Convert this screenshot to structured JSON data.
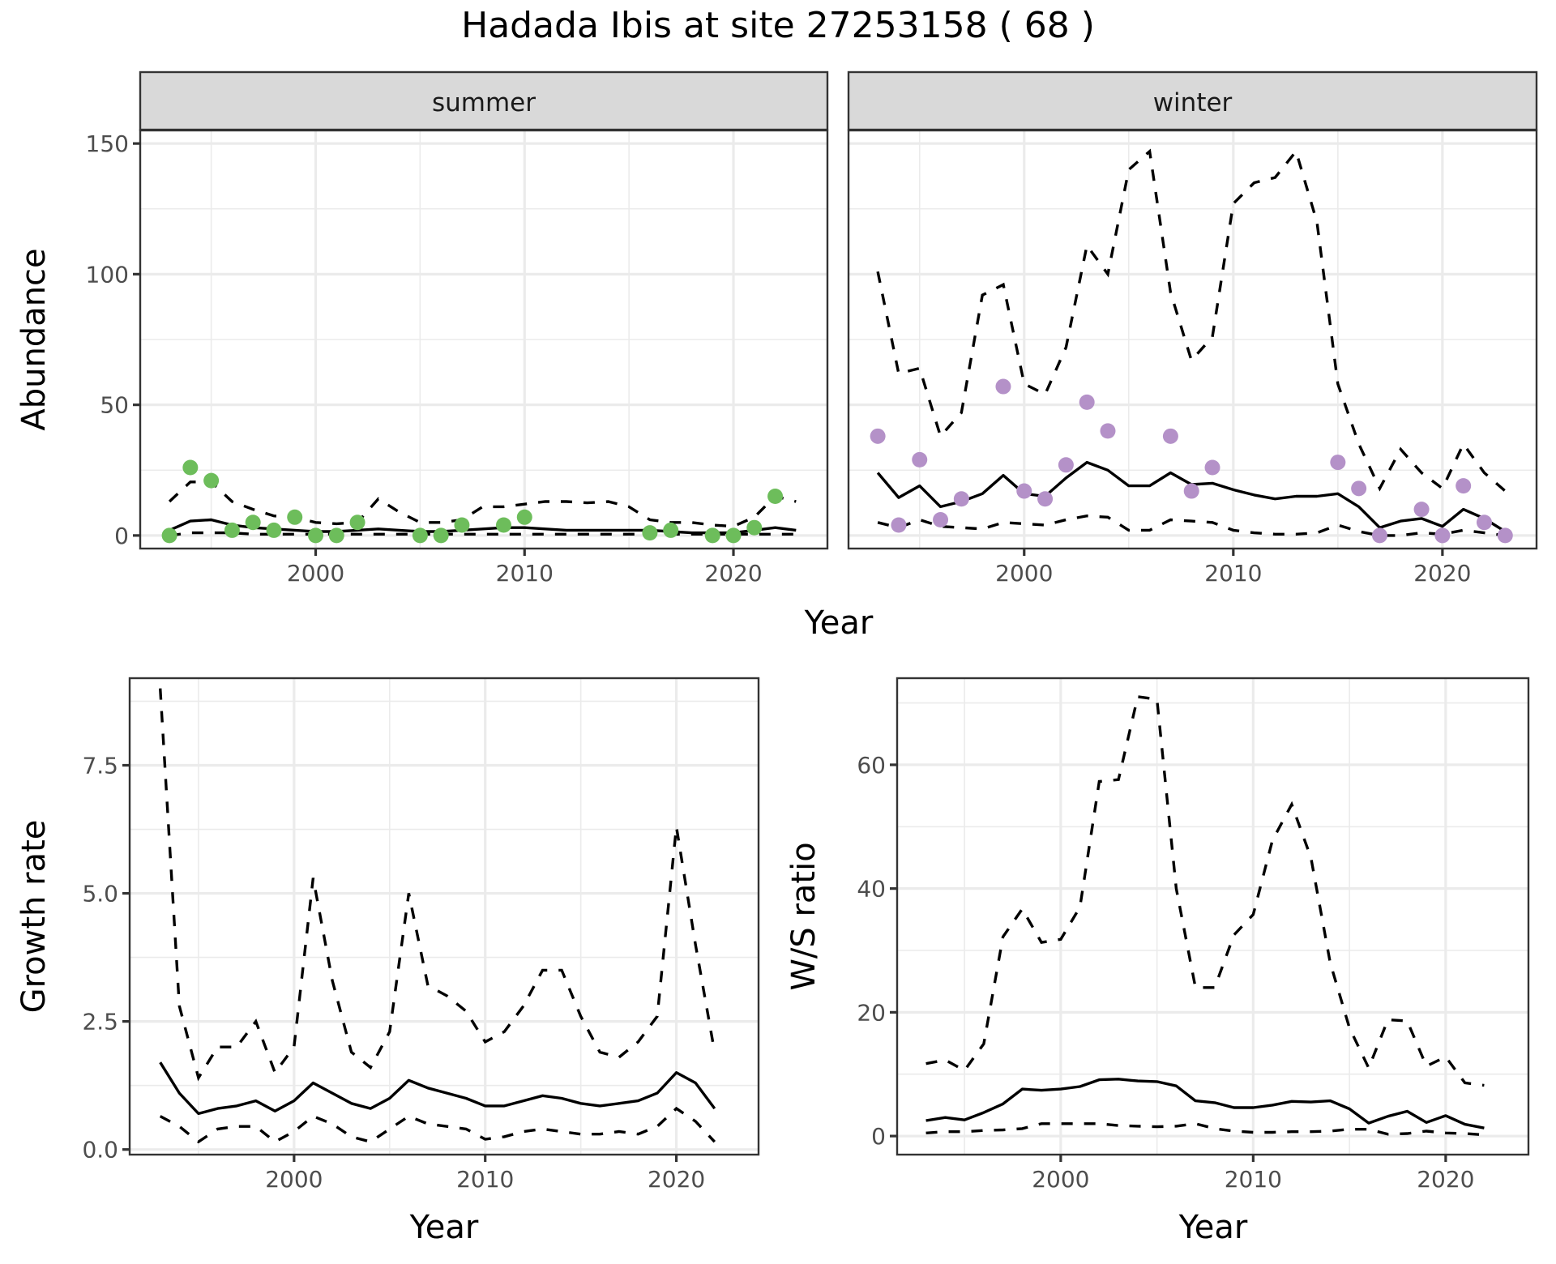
{
  "title": "Hadada Ibis at site 27253158 ( 68 )",
  "colors": {
    "summer_points": "#6dbd5b",
    "winter_points": "#b491c8",
    "strip_fill": "#d9d9d9",
    "line": "#000000"
  },
  "chart_data": [
    {
      "id": "abundance",
      "type": "line",
      "facets": [
        "summer",
        "winter"
      ],
      "ylabel": "Abundance",
      "xlabel": "Year",
      "ylim": [
        -5,
        155
      ],
      "yticks": [
        0,
        50,
        100,
        150
      ],
      "yticklabels": [
        "0",
        "50",
        "100",
        "150"
      ],
      "xlim": [
        1991.6,
        2024.5
      ],
      "xticks": [
        2000,
        2010,
        2020
      ],
      "xticklabels": [
        "2000",
        "2010",
        "2020"
      ],
      "grid": true,
      "panels": {
        "summer": {
          "x": [
            1993,
            1994,
            1995,
            1996,
            1997,
            1998,
            1999,
            2000,
            2001,
            2002,
            2003,
            2004,
            2005,
            2006,
            2007,
            2008,
            2009,
            2010,
            2011,
            2012,
            2013,
            2014,
            2015,
            2016,
            2017,
            2018,
            2019,
            2020,
            2021,
            2022,
            2023
          ],
          "mean": [
            2,
            5.5,
            6,
            4,
            3,
            2.5,
            2,
            1.5,
            1.5,
            2,
            2.5,
            2,
            1.5,
            1.5,
            2,
            2.5,
            3,
            3,
            2.5,
            2,
            2,
            2,
            2,
            2,
            1.5,
            1,
            1,
            1,
            2,
            3,
            2
          ],
          "upper": [
            13,
            20.5,
            20.5,
            13,
            10,
            7.5,
            7,
            5,
            4.5,
            5,
            14,
            9,
            5,
            5,
            6,
            11,
            11,
            12,
            13,
            13,
            12.5,
            13,
            11,
            6,
            5,
            5,
            4,
            3.5,
            7,
            15,
            13
          ],
          "lower": [
            0,
            1,
            1,
            1,
            0.5,
            0.5,
            0.5,
            0.5,
            0.5,
            0.5,
            0.5,
            0.5,
            0.5,
            0.5,
            0.5,
            0.5,
            0.5,
            0.5,
            0.5,
            0.5,
            0.5,
            0.5,
            0.5,
            0.5,
            0.5,
            0.5,
            0.5,
            0.5,
            0.5,
            0.5,
            0.5
          ],
          "observed": {
            "x": [
              1993,
              1994,
              1995,
              1996,
              1997,
              1998,
              1999,
              2000,
              2001,
              2002,
              2005,
              2006,
              2007,
              2009,
              2010,
              2016,
              2017,
              2019,
              2020,
              2021,
              2022
            ],
            "y": [
              0,
              26,
              21,
              2,
              5,
              2,
              7,
              0,
              0,
              5,
              0,
              0,
              4,
              4,
              7,
              1,
              2,
              0,
              0,
              3,
              15
            ]
          }
        },
        "winter": {
          "x": [
            1993,
            1994,
            1995,
            1996,
            1997,
            1998,
            1999,
            2000,
            2001,
            2002,
            2003,
            2004,
            2005,
            2006,
            2007,
            2008,
            2009,
            2010,
            2011,
            2012,
            2013,
            2014,
            2015,
            2016,
            2017,
            2018,
            2019,
            2020,
            2021,
            2022,
            2023
          ],
          "mean": [
            24,
            14.5,
            19,
            11,
            13,
            16,
            23,
            16,
            15,
            22,
            28,
            25,
            19,
            19,
            24,
            19.5,
            20,
            17.5,
            15.5,
            14,
            15,
            15,
            16,
            11,
            3,
            5.5,
            6.5,
            3.5,
            10,
            6.5,
            1.5
          ],
          "upper": [
            101,
            62,
            64,
            38,
            47,
            92,
            96,
            58,
            54,
            72,
            111,
            100,
            140,
            147,
            93,
            67,
            76,
            127,
            135,
            137,
            147,
            120,
            58,
            35,
            18,
            33,
            24,
            18,
            35,
            24,
            17
          ],
          "lower": [
            5,
            3,
            6,
            3.5,
            3,
            2.5,
            5,
            4.5,
            4,
            6,
            7.5,
            7,
            2,
            2,
            6,
            5.5,
            5,
            2,
            1,
            0.5,
            0.5,
            1,
            4,
            1.5,
            0,
            0,
            1,
            0.5,
            2,
            1,
            0
          ],
          "observed": {
            "x": [
              1993,
              1994,
              1995,
              1996,
              1997,
              1999,
              2000,
              2001,
              2002,
              2003,
              2004,
              2007,
              2008,
              2009,
              2015,
              2016,
              2017,
              2019,
              2020,
              2021,
              2022,
              2023
            ],
            "y": [
              38,
              4,
              29,
              6,
              14,
              57,
              17,
              14,
              27,
              51,
              40,
              38,
              17,
              26,
              28,
              18,
              0,
              10,
              0,
              19,
              5,
              0
            ]
          }
        }
      }
    },
    {
      "id": "growth-rate",
      "type": "line",
      "ylabel": "Growth rate",
      "xlabel": "Year",
      "ylim": [
        -0.1,
        9.2
      ],
      "yticks": [
        0,
        2.5,
        5,
        7.5
      ],
      "yticklabels": [
        "0.0",
        "2.5",
        "5.0",
        "7.5"
      ],
      "xlim": [
        1991.4,
        2024.3
      ],
      "xticks": [
        2000,
        2010,
        2020
      ],
      "xticklabels": [
        "2000",
        "2010",
        "2020"
      ],
      "grid": true,
      "x": [
        1993,
        1994,
        1995,
        1996,
        1997,
        1998,
        1999,
        2000,
        2001,
        2002,
        2003,
        2004,
        2005,
        2006,
        2007,
        2008,
        2009,
        2010,
        2011,
        2012,
        2013,
        2014,
        2015,
        2016,
        2017,
        2018,
        2019,
        2020,
        2021,
        2022
      ],
      "mean": [
        1.7,
        1.1,
        0.7,
        0.8,
        0.85,
        0.95,
        0.75,
        0.95,
        1.3,
        1.1,
        0.9,
        0.8,
        1.0,
        1.35,
        1.2,
        1.1,
        1.0,
        0.85,
        0.85,
        0.95,
        1.05,
        1.0,
        0.9,
        0.85,
        0.9,
        0.95,
        1.1,
        1.5,
        1.3,
        0.8
      ],
      "upper": [
        9.0,
        2.8,
        1.4,
        2.0,
        2.0,
        2.5,
        1.5,
        2.0,
        5.3,
        3.3,
        1.9,
        1.6,
        2.3,
        5.0,
        3.2,
        3.0,
        2.7,
        2.1,
        2.3,
        2.8,
        3.5,
        3.5,
        2.6,
        1.9,
        1.8,
        2.1,
        2.6,
        6.3,
        4.0,
        1.9
      ],
      "lower": [
        0.65,
        0.45,
        0.15,
        0.4,
        0.45,
        0.45,
        0.15,
        0.35,
        0.65,
        0.5,
        0.25,
        0.15,
        0.4,
        0.65,
        0.5,
        0.45,
        0.4,
        0.2,
        0.25,
        0.35,
        0.4,
        0.35,
        0.3,
        0.3,
        0.35,
        0.3,
        0.45,
        0.8,
        0.55,
        0.15
      ]
    },
    {
      "id": "ws-ratio",
      "type": "line",
      "ylabel": "W/S ratio",
      "xlabel": "Year",
      "ylim": [
        -3,
        74
      ],
      "yticks": [
        0,
        20,
        40,
        60
      ],
      "yticklabels": [
        "0",
        "20",
        "40",
        "60"
      ],
      "xlim": [
        1991.5,
        2024.3
      ],
      "xticks": [
        2000,
        2010,
        2020
      ],
      "xticklabels": [
        "2000",
        "2010",
        "2020"
      ],
      "grid": true,
      "x": [
        1993,
        1994,
        1995,
        1996,
        1997,
        1998,
        1999,
        2000,
        2001,
        2002,
        2003,
        2004,
        2005,
        2006,
        2007,
        2008,
        2009,
        2010,
        2011,
        2012,
        2013,
        2014,
        2015,
        2016,
        2017,
        2018,
        2019,
        2020,
        2021,
        2022
      ],
      "mean": [
        2.5,
        3,
        2.6,
        3.8,
        5.2,
        7.6,
        7.4,
        7.6,
        8,
        9.1,
        9.2,
        8.9,
        8.8,
        8.1,
        5.7,
        5.4,
        4.6,
        4.6,
        5,
        5.6,
        5.5,
        5.7,
        4.4,
        2.1,
        3.2,
        4,
        2.2,
        3.3,
        1.9,
        1.3
      ],
      "upper": [
        11.7,
        12.3,
        10.6,
        14.9,
        32.2,
        36.7,
        31.3,
        31.8,
        37,
        57.3,
        57.6,
        71,
        70.6,
        40,
        24,
        24,
        32.5,
        35.8,
        47.8,
        53.6,
        45,
        28,
        17.5,
        11,
        18.8,
        18.6,
        11.3,
        12.8,
        8.6,
        8.2
      ],
      "lower": [
        0.5,
        0.7,
        0.7,
        0.9,
        1,
        1.2,
        2,
        2,
        2,
        2,
        1.7,
        1.6,
        1.5,
        1.6,
        2,
        1.2,
        0.8,
        0.6,
        0.6,
        0.7,
        0.7,
        0.8,
        1.1,
        1.1,
        0.3,
        0.4,
        0.8,
        0.5,
        0.4,
        0.2
      ]
    }
  ]
}
